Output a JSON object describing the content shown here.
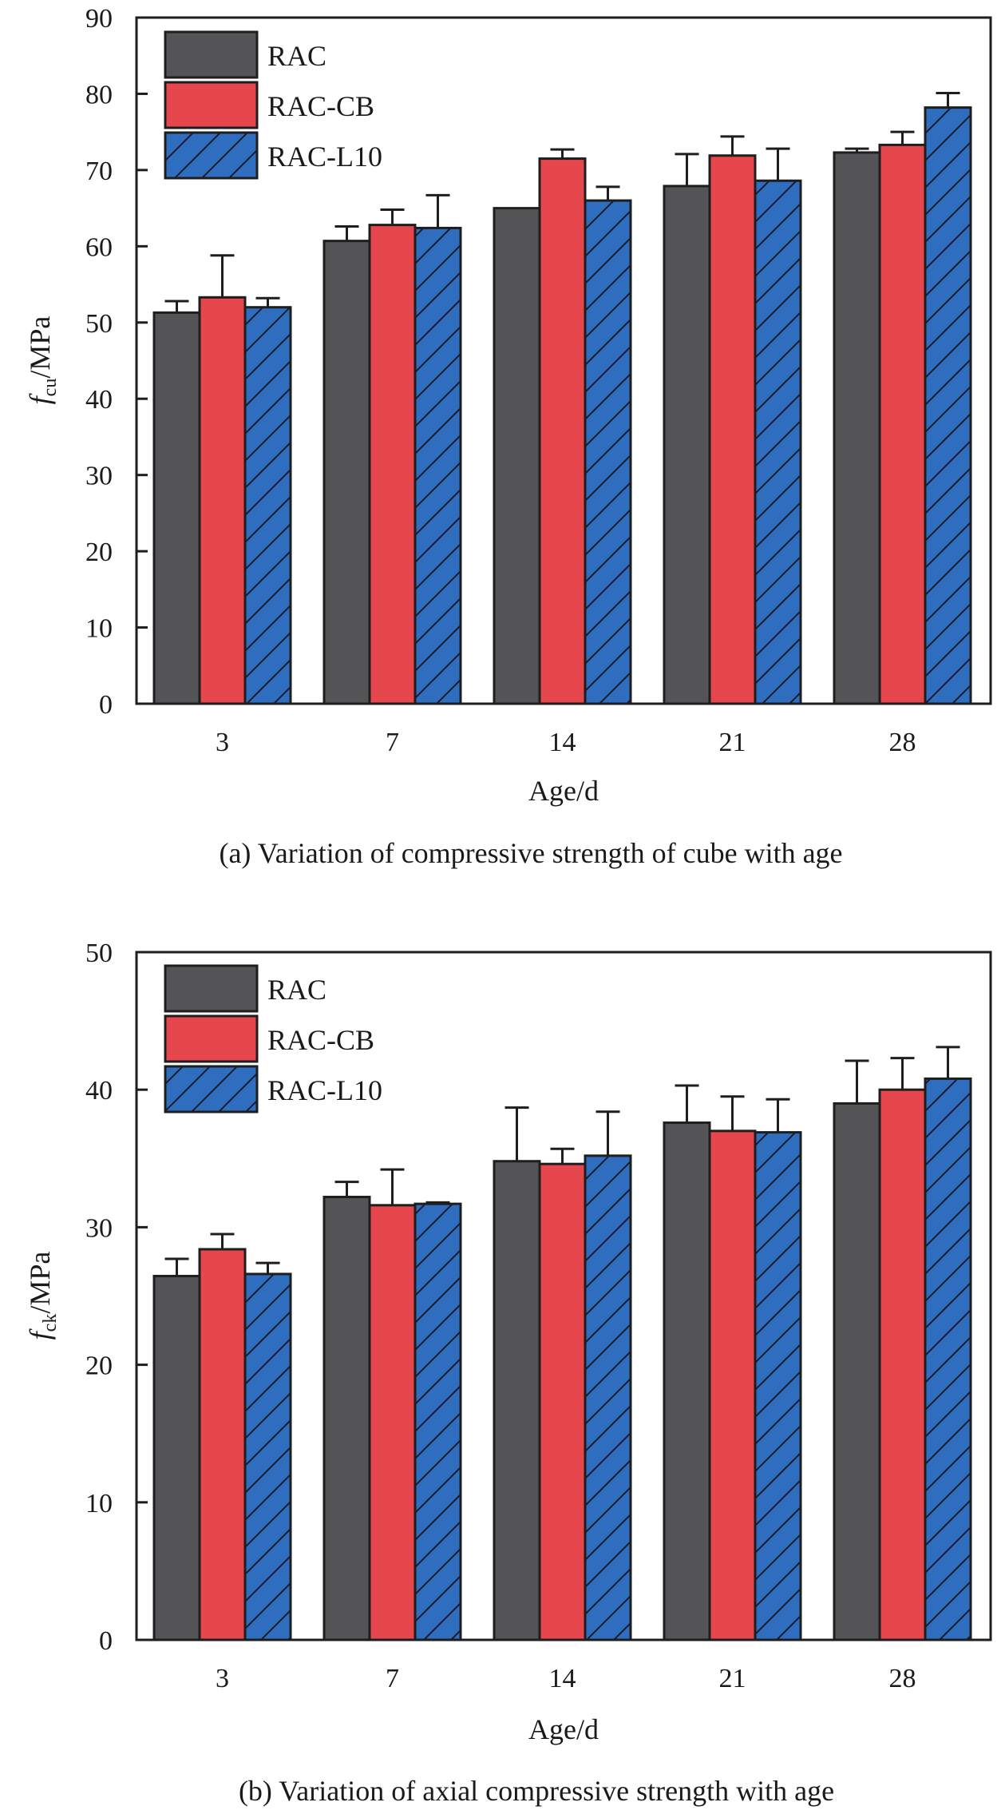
{
  "chart_data": [
    {
      "id": "a",
      "type": "bar",
      "title": "",
      "caption": "(a) Variation of compressive strength of cube with age",
      "xlabel": "Age/d",
      "ylabel_main": "f",
      "ylabel_sub": "cu",
      "ylabel_rest": "/MPa",
      "ylim": [
        0,
        90
      ],
      "yticks": [
        0,
        10,
        20,
        30,
        40,
        50,
        60,
        70,
        80,
        90
      ],
      "categories": [
        "3",
        "7",
        "14",
        "21",
        "28"
      ],
      "legend_position": "top-left",
      "grid": false,
      "series": [
        {
          "name": "RAC",
          "color": "#545456",
          "hatch": false,
          "values": [
            51.3,
            60.7,
            65.0,
            67.9,
            72.3
          ],
          "error_upper": [
            52.8,
            62.6,
            null,
            72.1,
            72.8
          ]
        },
        {
          "name": "RAC-CB",
          "color": "#e5474d",
          "hatch": false,
          "values": [
            53.3,
            62.8,
            71.5,
            71.9,
            73.3
          ],
          "error_upper": [
            58.8,
            64.8,
            72.7,
            74.4,
            75.0
          ]
        },
        {
          "name": "RAC-L10",
          "color": "#2f6dbf",
          "hatch": true,
          "values": [
            52.0,
            62.4,
            66.0,
            68.6,
            78.2
          ],
          "error_upper": [
            53.2,
            66.7,
            67.8,
            72.8,
            80.1
          ]
        }
      ]
    },
    {
      "id": "b",
      "type": "bar",
      "title": "",
      "caption": "(b) Variation of axial compressive strength with age",
      "xlabel": "Age/d",
      "ylabel_main": "f",
      "ylabel_sub": "ck",
      "ylabel_rest": "/MPa",
      "ylim": [
        0,
        50
      ],
      "yticks": [
        0,
        10,
        20,
        30,
        40,
        50
      ],
      "categories": [
        "3",
        "7",
        "14",
        "21",
        "28"
      ],
      "legend_position": "top-left",
      "grid": false,
      "series": [
        {
          "name": "RAC",
          "color": "#545456",
          "hatch": false,
          "values": [
            26.45,
            32.2,
            34.8,
            37.6,
            39.0
          ],
          "error_upper": [
            27.7,
            33.3,
            38.7,
            40.3,
            42.1
          ]
        },
        {
          "name": "RAC-CB",
          "color": "#e5474d",
          "hatch": false,
          "values": [
            28.4,
            31.6,
            34.6,
            37.0,
            40.0
          ],
          "error_upper": [
            29.5,
            34.2,
            35.7,
            39.5,
            42.3
          ]
        },
        {
          "name": "RAC-L10",
          "color": "#2f6dbf",
          "hatch": true,
          "values": [
            26.6,
            31.7,
            35.2,
            36.9,
            40.8
          ],
          "error_upper": [
            27.4,
            31.8,
            38.4,
            39.3,
            43.1
          ]
        }
      ]
    }
  ]
}
